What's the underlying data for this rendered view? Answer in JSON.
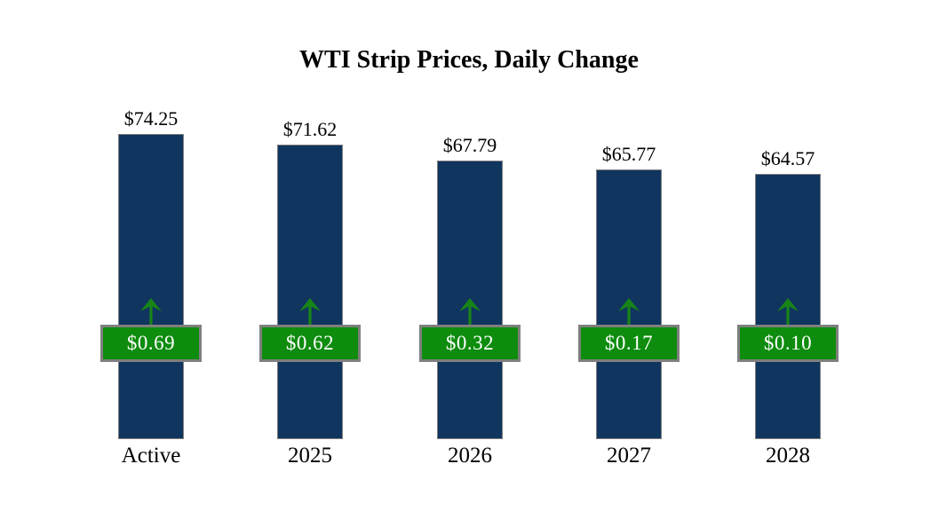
{
  "title": "WTI Strip Prices, Daily Change",
  "colors": {
    "background": "#FFFFFF",
    "bar_navy": "#10355F",
    "badge_green": "#0D8C0D",
    "arrow_green": "#178517",
    "border_gray": "#7F7F7F",
    "badge_text": "#FFFFFF",
    "text_black": "#000000"
  },
  "chart_data": {
    "type": "bar",
    "title": "WTI Strip Prices, Daily Change",
    "categories": [
      "Active",
      "2025",
      "2026",
      "2027",
      "2028"
    ],
    "bars": [
      {
        "category": "Active",
        "value": 74.25,
        "value_label": "$74.25",
        "change": 0.69,
        "change_label": "$0.69"
      },
      {
        "category": "2025",
        "value": 71.62,
        "value_label": "$71.62",
        "change": 0.62,
        "change_label": "$0.62"
      },
      {
        "category": "2026",
        "value": 67.79,
        "value_label": "$67.79",
        "change": 0.32,
        "change_label": "$0.32"
      },
      {
        "category": "2027",
        "value": 65.77,
        "value_label": "$65.77",
        "change": 0.17,
        "change_label": "$0.17"
      },
      {
        "category": "2028",
        "value": 64.57,
        "value_label": "$64.57",
        "change": 0.1,
        "change_label": "$0.10"
      }
    ],
    "series": [
      {
        "name": "WTI strip price",
        "values": [
          74.25,
          71.62,
          67.79,
          65.77,
          64.57
        ]
      },
      {
        "name": "Daily change",
        "values": [
          0.69,
          0.62,
          0.32,
          0.17,
          0.1
        ]
      }
    ],
    "baseline": 0,
    "layout": {
      "axes": "hidden",
      "gridlines": false,
      "value_labels": "above each bar",
      "change_labels": "green badge with up arrow overlaid on each bar",
      "legend": "none"
    }
  }
}
